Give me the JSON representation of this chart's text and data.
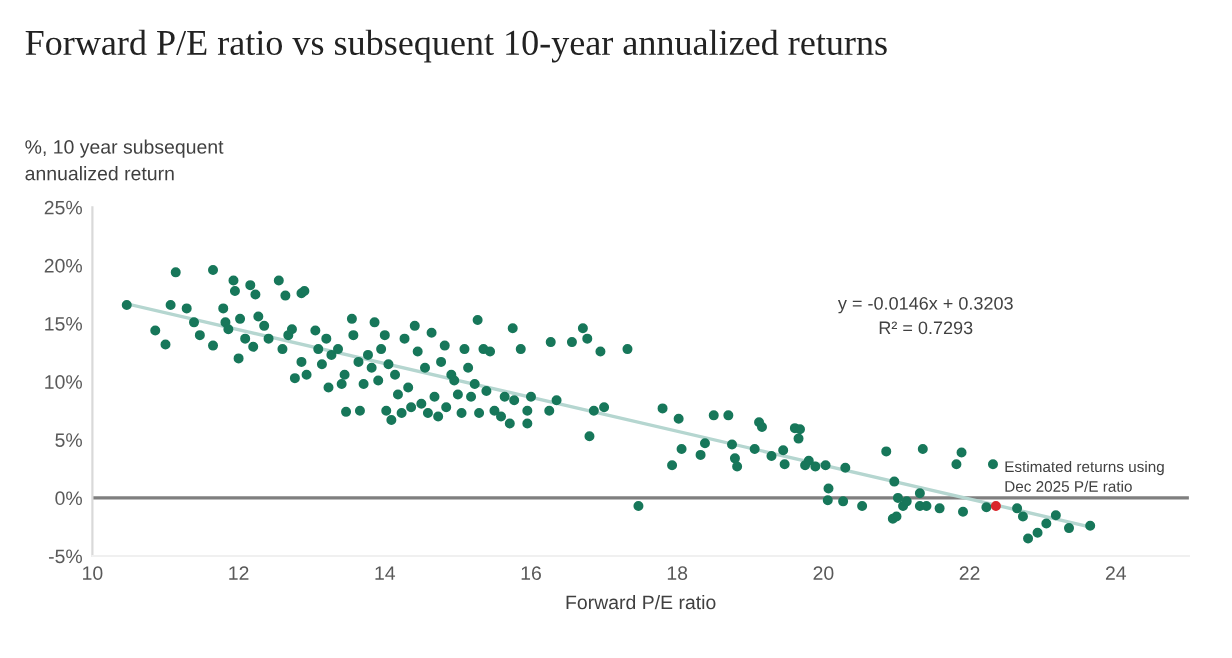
{
  "chart_data": {
    "type": "scatter",
    "title": "Forward P/E ratio vs subsequent 10-year annualized returns",
    "xlabel": "Forward P/E ratio",
    "ylabel": "%, 10 year subsequent\nannualized return",
    "xlim": [
      10,
      25
    ],
    "xticks": [
      10,
      12,
      14,
      16,
      18,
      20,
      22,
      24
    ],
    "ylim": [
      -5,
      25
    ],
    "yticks": [
      {
        "value": -5,
        "label": "-5%"
      },
      {
        "value": 0,
        "label": "0%"
      },
      {
        "value": 5,
        "label": "5%"
      },
      {
        "value": 10,
        "label": "10%"
      },
      {
        "value": 15,
        "label": "15%"
      },
      {
        "value": 20,
        "label": "20%"
      },
      {
        "value": 25,
        "label": "25%"
      }
    ],
    "grid": false,
    "legend": false,
    "marker": "circle",
    "ref_lines": [
      {
        "axis": "y",
        "value": 0,
        "color": "#7f7f7f"
      }
    ],
    "annotations": [
      "y = -0.0146x + 0.3203",
      "R² = 0.7293",
      {
        "text": "Estimated returns using\nDec 2025 P/E ratio",
        "x": 22.36,
        "y": -0.7
      }
    ],
    "series": [
      {
        "type": "line",
        "color": "#b5d6d0",
        "marker": "none",
        "x": [
          10.47,
          23.65
        ],
        "values": [
          16.7,
          -2.5
        ]
      },
      {
        "color": "#17775a",
        "x": [
          10.47,
          10.86,
          11.0,
          11.07,
          11.14,
          11.29,
          11.39,
          11.47,
          11.65,
          11.65,
          11.79,
          11.82,
          11.86,
          11.93,
          11.95,
          12.0,
          12.02,
          12.09,
          12.16,
          12.23,
          12.2,
          12.27,
          12.35,
          12.41,
          12.55,
          12.6,
          12.64,
          12.68,
          12.73,
          12.86,
          12.9,
          12.77,
          12.86,
          12.93,
          13.05,
          13.09,
          13.14,
          13.2,
          13.23,
          13.27,
          13.36,
          13.41,
          13.45,
          13.47,
          13.55,
          13.57,
          13.64,
          13.66,
          13.71,
          13.77,
          13.82,
          13.86,
          13.91,
          13.95,
          14.0,
          14.02,
          14.09,
          14.05,
          14.14,
          14.18,
          14.23,
          14.27,
          14.32,
          14.36,
          14.41,
          14.45,
          14.5,
          14.55,
          14.59,
          14.64,
          14.68,
          14.73,
          14.77,
          14.82,
          14.84,
          14.91,
          14.95,
          15.0,
          15.05,
          15.09,
          15.14,
          15.18,
          15.23,
          15.27,
          15.29,
          15.35,
          15.39,
          15.44,
          15.5,
          15.59,
          15.64,
          15.71,
          15.75,
          15.77,
          15.86,
          15.95,
          15.95,
          16.0,
          16.27,
          16.25,
          16.35,
          16.56,
          16.71,
          16.77,
          16.8,
          16.86,
          16.95,
          17.0,
          17.32,
          17.47,
          17.8,
          17.93,
          18.02,
          18.06,
          18.32,
          18.38,
          18.5,
          18.7,
          18.75,
          18.79,
          18.82,
          19.06,
          19.12,
          19.16,
          19.29,
          19.45,
          19.47,
          19.61,
          19.68,
          19.66,
          19.75,
          19.8,
          19.89,
          20.03,
          20.07,
          20.06,
          20.27,
          20.3,
          20.53,
          20.86,
          20.97,
          20.95,
          21.0,
          21.02,
          21.09,
          21.14,
          21.32,
          21.36,
          21.32,
          21.41,
          21.59,
          21.82,
          21.89,
          21.91,
          22.23,
          22.32,
          22.65,
          22.73,
          22.8,
          22.93,
          23.05,
          23.18,
          23.36,
          23.65
        ],
        "values": [
          16.6,
          14.4,
          13.2,
          16.6,
          19.4,
          16.3,
          15.1,
          14.0,
          13.1,
          19.6,
          16.3,
          15.1,
          14.5,
          18.7,
          17.8,
          12.0,
          15.4,
          13.7,
          18.3,
          17.5,
          13.0,
          15.6,
          14.8,
          13.7,
          18.7,
          12.8,
          17.4,
          14.0,
          14.5,
          17.6,
          17.8,
          10.3,
          11.7,
          10.6,
          14.4,
          12.8,
          11.5,
          13.7,
          9.5,
          12.3,
          12.8,
          9.8,
          10.6,
          7.4,
          15.4,
          14.0,
          11.7,
          7.5,
          9.8,
          12.3,
          11.2,
          15.1,
          10.1,
          12.8,
          14.0,
          7.5,
          6.7,
          11.5,
          10.6,
          8.9,
          7.3,
          13.7,
          9.5,
          7.8,
          14.8,
          12.6,
          8.1,
          11.2,
          7.3,
          14.2,
          8.7,
          7.0,
          11.7,
          13.1,
          7.8,
          10.6,
          10.1,
          8.9,
          7.3,
          12.8,
          11.2,
          8.7,
          9.8,
          15.3,
          7.3,
          12.8,
          9.2,
          12.6,
          7.5,
          7.0,
          8.7,
          6.4,
          14.6,
          8.4,
          12.8,
          7.5,
          6.4,
          8.7,
          13.4,
          7.5,
          8.4,
          13.4,
          14.6,
          13.7,
          5.3,
          7.5,
          12.6,
          7.8,
          12.8,
          -0.7,
          7.7,
          2.8,
          6.8,
          4.2,
          3.7,
          4.7,
          7.1,
          7.1,
          4.6,
          3.4,
          2.7,
          4.2,
          6.5,
          6.1,
          3.6,
          4.1,
          2.9,
          6.0,
          5.9,
          5.1,
          2.8,
          3.2,
          2.7,
          2.8,
          0.8,
          -0.2,
          -0.3,
          2.6,
          -0.7,
          4.0,
          1.4,
          -1.8,
          -1.6,
          0.0,
          -0.7,
          -0.3,
          0.4,
          4.2,
          -0.7,
          -0.7,
          -0.9,
          2.9,
          3.9,
          -1.2,
          -0.8,
          2.9,
          -0.9,
          -1.6,
          -3.5,
          -3.0,
          -2.2,
          -1.5,
          -2.6,
          -2.4
        ]
      },
      {
        "color": "#d9262b",
        "x": [
          22.36
        ],
        "values": [
          -0.7
        ]
      }
    ]
  }
}
